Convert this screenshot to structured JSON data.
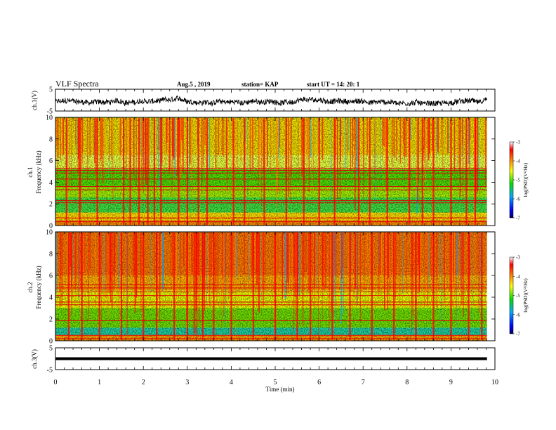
{
  "header": {
    "title": "VLF Spectra",
    "date": "Aug.5 , 2019",
    "station": "station= KAP",
    "start": "start UT = 14: 20: 1"
  },
  "chart_data": [
    {
      "type": "line",
      "panel": "ch1-waveform",
      "ylabel": "ch.1(V)",
      "ylim": [
        -5,
        5
      ],
      "y_ticks": [
        "5",
        "-5"
      ],
      "x_range_min": [
        0,
        9.82
      ],
      "approx_baseline": -0.8,
      "approx_spread": 2.5
    },
    {
      "type": "heatmap",
      "panel": "ch1-spectrogram",
      "ylabel": "ch.1 Frequency (kHz)",
      "ylim": [
        0,
        10
      ],
      "y_ticks": [
        "0",
        "2",
        "4",
        "6",
        "8",
        "10"
      ],
      "x_range_min": [
        0,
        9.82
      ],
      "colorbar": {
        "label": "log(PSD)(V²/Hz)",
        "range": [
          -7,
          -3
        ],
        "ticks": [
          "-3",
          "-4",
          "-5",
          "-6",
          "-7"
        ],
        "colors": [
          "#000088",
          "#0000ff",
          "#00a0ff",
          "#00e000",
          "#ffff00",
          "#ff8000",
          "#ff0000",
          "#ffffff"
        ]
      },
      "horizontal_lines_khz": [
        0.35,
        0.7,
        2.1,
        2.3,
        3.3,
        3.6,
        4.3,
        4.85,
        5.1,
        5.3
      ],
      "vertical_bursts_min": [
        0.25,
        0.55,
        0.95,
        1.55,
        1.7,
        1.9,
        2.1,
        2.25,
        2.4,
        2.8,
        3.0,
        3.25,
        3.45,
        4.05,
        4.3,
        4.75,
        5.25,
        5.65,
        6.0,
        6.35,
        6.9,
        7.15,
        7.55,
        8.05,
        8.35,
        8.6,
        9.0,
        9.35,
        9.55
      ]
    },
    {
      "type": "heatmap",
      "panel": "ch2-spectrogram",
      "ylabel": "ch.2 Frequency (kHz)",
      "ylim": [
        0,
        10
      ],
      "y_ticks": [
        "0",
        "2",
        "4",
        "6",
        "8",
        "10"
      ],
      "x_range_min": [
        0,
        9.82
      ],
      "colorbar": {
        "label": "log(PSD)(V²/Hz)",
        "range": [
          -7,
          -3
        ],
        "ticks": [
          "-3",
          "-4",
          "-5",
          "-6",
          "-7"
        ],
        "colors": [
          "#000088",
          "#0000ff",
          "#00a0ff",
          "#00e000",
          "#ffff00",
          "#ff8000",
          "#ff0000",
          "#ffffff"
        ]
      },
      "horizontal_lines_khz": [
        0.2,
        0.5,
        1.85,
        3.3,
        3.55,
        4.15,
        4.5,
        4.85,
        5.15
      ],
      "vertical_bursts_min": [
        0.3,
        0.6,
        1.0,
        1.5,
        2.0,
        2.3,
        2.7,
        3.0,
        3.35,
        3.6,
        4.0,
        4.5,
        5.0,
        5.5,
        5.8,
        6.3,
        6.7,
        7.2,
        7.7,
        8.2,
        8.6,
        9.0,
        9.4,
        9.7
      ]
    },
    {
      "type": "line",
      "panel": "ch3-waveform",
      "ylabel": "ch.3(V)",
      "ylim": [
        -5,
        5
      ],
      "y_ticks": [
        "5",
        "-5"
      ],
      "x_range_min": [
        0,
        9.82
      ],
      "constant_value": 0
    }
  ],
  "x_axis": {
    "label": "Time (min)",
    "range": [
      0,
      10
    ],
    "ticks": [
      "0",
      "1",
      "2",
      "3",
      "4",
      "5",
      "6",
      "7",
      "8",
      "9",
      "10"
    ]
  }
}
